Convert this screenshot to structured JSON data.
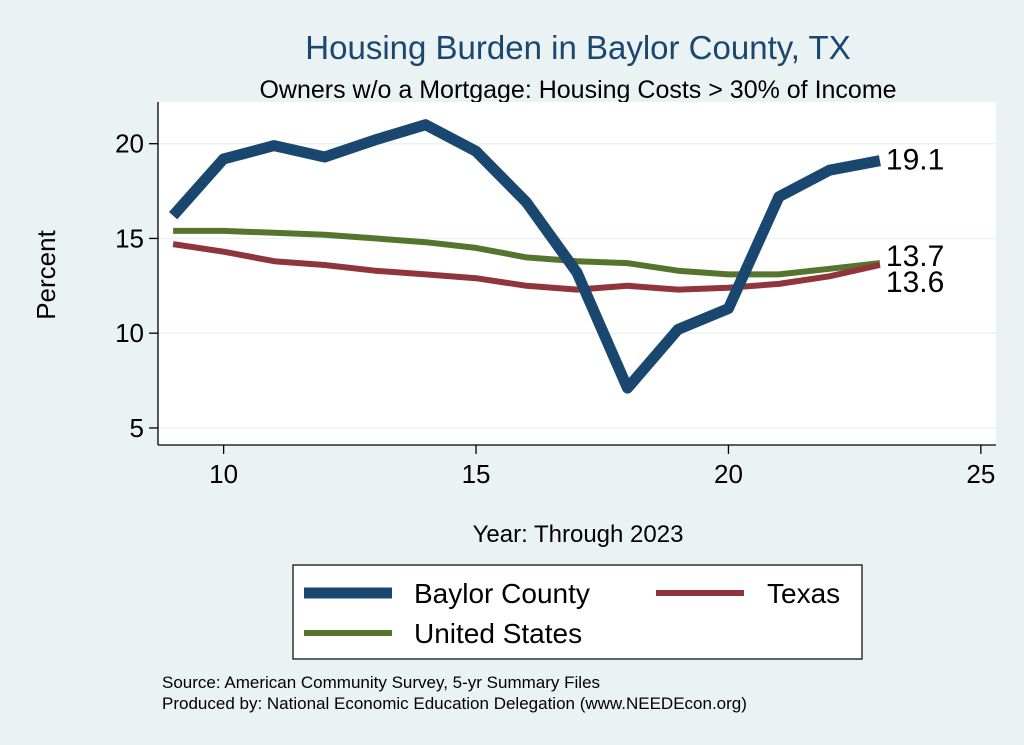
{
  "chart_data": {
    "type": "line",
    "title": "Housing Burden in Baylor County, TX",
    "subtitle": "Owners w/o a Mortgage: Housing Costs > 30% of Income",
    "xlabel": "Year: Through 2023",
    "ylabel": "Percent",
    "xlim": [
      8.7,
      25.3
    ],
    "ylim": [
      4.1,
      22.2
    ],
    "xticks": [
      "10",
      "15",
      "20",
      "25"
    ],
    "xtick_values": [
      10,
      15,
      20,
      25
    ],
    "yticks": [
      "5",
      "10",
      "15",
      "20"
    ],
    "ytick_values": [
      5,
      10,
      15,
      20
    ],
    "grid": true,
    "legend_position": "bottom",
    "x": [
      9,
      10,
      11,
      12,
      13,
      14,
      15,
      16,
      17,
      18,
      19,
      20,
      21,
      22,
      23
    ],
    "series": [
      {
        "name": "Baylor County",
        "color": "#1a476f",
        "values": [
          16.2,
          19.2,
          19.9,
          19.3,
          20.2,
          21.0,
          19.6,
          16.9,
          13.2,
          7.1,
          10.2,
          11.3,
          17.2,
          18.6,
          19.1
        ],
        "end_label": "19.1"
      },
      {
        "name": "Texas",
        "color": "#90353b",
        "values": [
          14.7,
          14.3,
          13.8,
          13.6,
          13.3,
          13.1,
          12.9,
          12.5,
          12.3,
          12.5,
          12.3,
          12.4,
          12.6,
          13.0,
          13.6
        ],
        "end_label": "13.6"
      },
      {
        "name": "United States",
        "color": "#55752f",
        "values": [
          15.4,
          15.4,
          15.3,
          15.2,
          15.0,
          14.8,
          14.5,
          14.0,
          13.8,
          13.7,
          13.3,
          13.1,
          13.1,
          13.4,
          13.7
        ],
        "end_label": "13.7"
      }
    ],
    "source": "Source: American Community Survey, 5-yr Summary Files",
    "produced_by": "Produced by: National Economic Education Delegation (www.NEEDEcon.org)"
  }
}
